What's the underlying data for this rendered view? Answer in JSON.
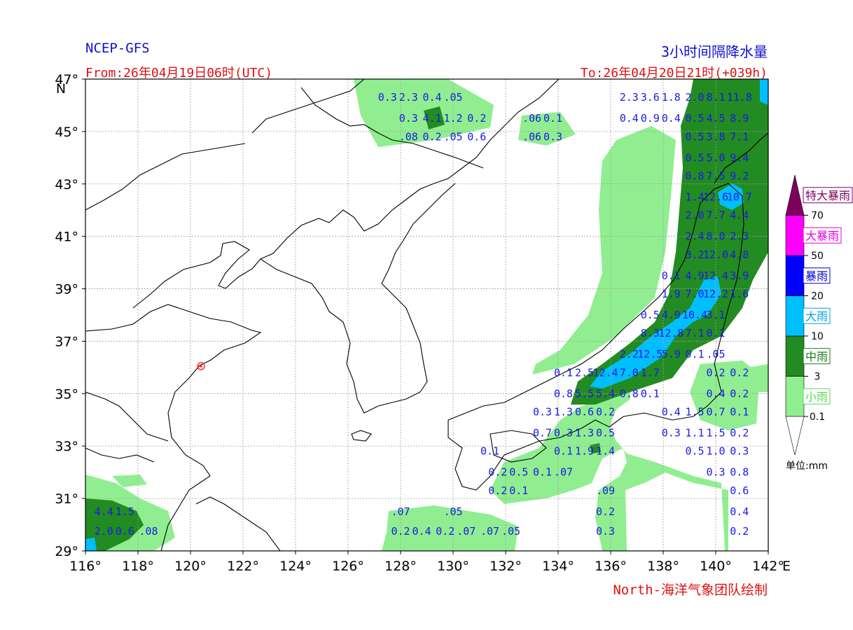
{
  "header": {
    "model": "NCEP-GFS",
    "product": "3小时间隔降水量",
    "from": "From:26年04月19日06时(UTC)",
    "to": "To:26年04月20日21时(+039h)",
    "credit": "North-海洋气象团队绘制"
  },
  "map": {
    "lon_range": [
      116,
      142
    ],
    "lat_range": [
      29,
      47
    ],
    "lon_ticks": [
      "116°",
      "118°",
      "120°",
      "122°",
      "124°",
      "126°",
      "128°",
      "130°",
      "132°",
      "134°",
      "136°",
      "138°",
      "140°",
      "142°"
    ],
    "lon_suffix": "E",
    "lat_ticks": [
      "47°",
      "45°",
      "43°",
      "41°",
      "39°",
      "37°",
      "35°",
      "33°",
      "31°",
      "29°"
    ],
    "lat_suffix": "N",
    "marker": {
      "lon": 120.4,
      "lat": 36.05,
      "color": "#ff3030"
    }
  },
  "legend": {
    "unit": "单位:mm",
    "bins": [
      {
        "name": "小雨",
        "color": "#90ee90",
        "text_color": "#5cd65c"
      },
      {
        "name": "中雨",
        "color": "#228b22",
        "text_color": "#1a7a1a"
      },
      {
        "name": "大雨",
        "color": "#00bfff",
        "text_color": "#00a0e0"
      },
      {
        "name": "暴雨",
        "color": "#0000ff",
        "text_color": "#0000d0"
      },
      {
        "name": "大暴雨",
        "color": "#ff00ff",
        "text_color": "#e000e0"
      },
      {
        "name": "特大暴雨",
        "color": "#800060",
        "text_color": "#800060"
      }
    ],
    "thresholds": [
      "0.1",
      "3",
      "10",
      "20",
      "50",
      "70"
    ]
  },
  "chart_data": {
    "type": "heatmap",
    "title": "3小时间隔降水量",
    "unit": "mm",
    "values": [
      {
        "lon": 127.5,
        "lat": 46.3,
        "v": "0.3"
      },
      {
        "lon": 128.3,
        "lat": 46.3,
        "v": "2.3"
      },
      {
        "lon": 129.2,
        "lat": 46.3,
        "v": "0.4"
      },
      {
        "lon": 130.0,
        "lat": 46.3,
        "v": ".05"
      },
      {
        "lon": 128.3,
        "lat": 45.5,
        "v": "0.3"
      },
      {
        "lon": 129.2,
        "lat": 45.5,
        "v": "4.1"
      },
      {
        "lon": 130.0,
        "lat": 45.5,
        "v": "1.2"
      },
      {
        "lon": 130.9,
        "lat": 45.5,
        "v": "0.2"
      },
      {
        "lon": 128.3,
        "lat": 44.8,
        "v": ".08"
      },
      {
        "lon": 129.2,
        "lat": 44.8,
        "v": "0.2"
      },
      {
        "lon": 130.0,
        "lat": 44.8,
        "v": ".05"
      },
      {
        "lon": 130.9,
        "lat": 44.8,
        "v": "0.6"
      },
      {
        "lon": 133.0,
        "lat": 45.5,
        "v": ".06"
      },
      {
        "lon": 133.8,
        "lat": 45.5,
        "v": "0.1"
      },
      {
        "lon": 133.0,
        "lat": 44.8,
        "v": ".06"
      },
      {
        "lon": 133.8,
        "lat": 44.8,
        "v": "0.3"
      },
      {
        "lon": 136.7,
        "lat": 46.3,
        "v": "2.3"
      },
      {
        "lon": 137.5,
        "lat": 46.3,
        "v": "3.6"
      },
      {
        "lon": 138.3,
        "lat": 46.3,
        "v": "1.8"
      },
      {
        "lon": 139.2,
        "lat": 46.3,
        "v": "2.0"
      },
      {
        "lon": 140.0,
        "lat": 46.3,
        "v": "8.1"
      },
      {
        "lon": 140.9,
        "lat": 46.3,
        "v": "11.8"
      },
      {
        "lon": 136.7,
        "lat": 45.5,
        "v": "0.4"
      },
      {
        "lon": 137.5,
        "lat": 45.5,
        "v": "0.9"
      },
      {
        "lon": 138.3,
        "lat": 45.5,
        "v": "0.4"
      },
      {
        "lon": 139.2,
        "lat": 45.5,
        "v": "0.5"
      },
      {
        "lon": 140.0,
        "lat": 45.5,
        "v": "4.5"
      },
      {
        "lon": 140.9,
        "lat": 45.5,
        "v": "8.9"
      },
      {
        "lon": 139.2,
        "lat": 44.8,
        "v": "0.5"
      },
      {
        "lon": 140.0,
        "lat": 44.8,
        "v": "3.8"
      },
      {
        "lon": 140.9,
        "lat": 44.8,
        "v": "7.1"
      },
      {
        "lon": 139.2,
        "lat": 44.0,
        "v": "0.5"
      },
      {
        "lon": 140.0,
        "lat": 44.0,
        "v": "5.0"
      },
      {
        "lon": 140.9,
        "lat": 44.0,
        "v": "9.4"
      },
      {
        "lon": 139.2,
        "lat": 43.3,
        "v": "0.8"
      },
      {
        "lon": 140.0,
        "lat": 43.3,
        "v": "7.5"
      },
      {
        "lon": 140.9,
        "lat": 43.3,
        "v": "9.2"
      },
      {
        "lon": 139.2,
        "lat": 42.5,
        "v": "1.4"
      },
      {
        "lon": 140.0,
        "lat": 42.5,
        "v": "12.6"
      },
      {
        "lon": 140.9,
        "lat": 42.5,
        "v": "10.7"
      },
      {
        "lon": 139.2,
        "lat": 41.8,
        "v": "2.0"
      },
      {
        "lon": 140.0,
        "lat": 41.8,
        "v": "7.7"
      },
      {
        "lon": 140.9,
        "lat": 41.8,
        "v": "4.4"
      },
      {
        "lon": 139.2,
        "lat": 41.0,
        "v": "2.4"
      },
      {
        "lon": 140.0,
        "lat": 41.0,
        "v": "8.0"
      },
      {
        "lon": 140.9,
        "lat": 41.0,
        "v": "2.3"
      },
      {
        "lon": 139.2,
        "lat": 40.3,
        "v": "3.2"
      },
      {
        "lon": 140.0,
        "lat": 40.3,
        "v": "12.0"
      },
      {
        "lon": 140.9,
        "lat": 40.3,
        "v": "4.8"
      },
      {
        "lon": 138.3,
        "lat": 39.5,
        "v": "0.1"
      },
      {
        "lon": 139.2,
        "lat": 39.5,
        "v": "4.9"
      },
      {
        "lon": 140.0,
        "lat": 39.5,
        "v": "12.4"
      },
      {
        "lon": 140.9,
        "lat": 39.5,
        "v": "3.9"
      },
      {
        "lon": 138.3,
        "lat": 38.8,
        "v": "1.9"
      },
      {
        "lon": 139.2,
        "lat": 38.8,
        "v": "7.0"
      },
      {
        "lon": 140.0,
        "lat": 38.8,
        "v": "12.2"
      },
      {
        "lon": 140.9,
        "lat": 38.8,
        "v": "1.6"
      },
      {
        "lon": 137.5,
        "lat": 38.0,
        "v": "0.5"
      },
      {
        "lon": 138.3,
        "lat": 38.0,
        "v": "4.9"
      },
      {
        "lon": 139.2,
        "lat": 38.0,
        "v": "10.4"
      },
      {
        "lon": 140.0,
        "lat": 38.0,
        "v": "3.1"
      },
      {
        "lon": 137.5,
        "lat": 37.3,
        "v": "8.3"
      },
      {
        "lon": 138.3,
        "lat": 37.3,
        "v": "12.8"
      },
      {
        "lon": 139.2,
        "lat": 37.3,
        "v": "7.1"
      },
      {
        "lon": 140.0,
        "lat": 37.3,
        "v": "0.1"
      },
      {
        "lon": 136.7,
        "lat": 36.5,
        "v": "2.2"
      },
      {
        "lon": 137.5,
        "lat": 36.5,
        "v": "12.5"
      },
      {
        "lon": 138.3,
        "lat": 36.5,
        "v": "5.9"
      },
      {
        "lon": 139.2,
        "lat": 36.5,
        "v": "0.1"
      },
      {
        "lon": 140.0,
        "lat": 36.5,
        "v": ".05"
      },
      {
        "lon": 134.2,
        "lat": 35.8,
        "v": "0.1"
      },
      {
        "lon": 135.0,
        "lat": 35.8,
        "v": "2.5"
      },
      {
        "lon": 135.8,
        "lat": 35.8,
        "v": "12.4"
      },
      {
        "lon": 136.7,
        "lat": 35.8,
        "v": "7.0"
      },
      {
        "lon": 137.5,
        "lat": 35.8,
        "v": "1.7"
      },
      {
        "lon": 140.0,
        "lat": 35.8,
        "v": "0.2"
      },
      {
        "lon": 140.9,
        "lat": 35.8,
        "v": "0.2"
      },
      {
        "lon": 134.2,
        "lat": 35.0,
        "v": "0.8"
      },
      {
        "lon": 135.0,
        "lat": 35.0,
        "v": "5.5"
      },
      {
        "lon": 135.8,
        "lat": 35.0,
        "v": "5.4"
      },
      {
        "lon": 136.7,
        "lat": 35.0,
        "v": "0.8"
      },
      {
        "lon": 137.5,
        "lat": 35.0,
        "v": "0.1"
      },
      {
        "lon": 140.0,
        "lat": 35.0,
        "v": "0.4"
      },
      {
        "lon": 140.9,
        "lat": 35.0,
        "v": "0.2"
      },
      {
        "lon": 133.4,
        "lat": 34.3,
        "v": "0.3"
      },
      {
        "lon": 134.2,
        "lat": 34.3,
        "v": "1.3"
      },
      {
        "lon": 135.0,
        "lat": 34.3,
        "v": "0.6"
      },
      {
        "lon": 135.8,
        "lat": 34.3,
        "v": "0.2"
      },
      {
        "lon": 138.3,
        "lat": 34.3,
        "v": "0.4"
      },
      {
        "lon": 139.2,
        "lat": 34.3,
        "v": "1.5"
      },
      {
        "lon": 140.0,
        "lat": 34.3,
        "v": "0.7"
      },
      {
        "lon": 140.9,
        "lat": 34.3,
        "v": "0.1"
      },
      {
        "lon": 133.4,
        "lat": 33.5,
        "v": "0.7"
      },
      {
        "lon": 134.2,
        "lat": 33.5,
        "v": "0.3"
      },
      {
        "lon": 135.0,
        "lat": 33.5,
        "v": "1.3"
      },
      {
        "lon": 135.8,
        "lat": 33.5,
        "v": "0.5"
      },
      {
        "lon": 138.3,
        "lat": 33.5,
        "v": "0.3"
      },
      {
        "lon": 139.2,
        "lat": 33.5,
        "v": "1.1"
      },
      {
        "lon": 140.0,
        "lat": 33.5,
        "v": "1.5"
      },
      {
        "lon": 140.9,
        "lat": 33.5,
        "v": "0.2"
      },
      {
        "lon": 131.4,
        "lat": 32.8,
        "v": "0.1"
      },
      {
        "lon": 134.2,
        "lat": 32.8,
        "v": "0.1"
      },
      {
        "lon": 135.0,
        "lat": 32.8,
        "v": "1.9"
      },
      {
        "lon": 135.8,
        "lat": 32.8,
        "v": "1.4"
      },
      {
        "lon": 139.2,
        "lat": 32.8,
        "v": "0.5"
      },
      {
        "lon": 140.0,
        "lat": 32.8,
        "v": "1.0"
      },
      {
        "lon": 140.9,
        "lat": 32.8,
        "v": "0.3"
      },
      {
        "lon": 131.7,
        "lat": 32.0,
        "v": "0.2"
      },
      {
        "lon": 132.5,
        "lat": 32.0,
        "v": "0.5"
      },
      {
        "lon": 133.4,
        "lat": 32.0,
        "v": "0.1"
      },
      {
        "lon": 134.2,
        "lat": 32.0,
        "v": ".07"
      },
      {
        "lon": 140.0,
        "lat": 32.0,
        "v": "0.3"
      },
      {
        "lon": 140.9,
        "lat": 32.0,
        "v": "0.8"
      },
      {
        "lon": 131.7,
        "lat": 31.3,
        "v": "0.2"
      },
      {
        "lon": 132.5,
        "lat": 31.3,
        "v": "0.1"
      },
      {
        "lon": 135.8,
        "lat": 31.3,
        "v": ".09"
      },
      {
        "lon": 140.9,
        "lat": 31.3,
        "v": "0.6"
      },
      {
        "lon": 128.0,
        "lat": 30.5,
        "v": ".07"
      },
      {
        "lon": 130.0,
        "lat": 30.5,
        "v": ".05"
      },
      {
        "lon": 135.8,
        "lat": 30.5,
        "v": "0.2"
      },
      {
        "lon": 140.9,
        "lat": 30.5,
        "v": "0.4"
      },
      {
        "lon": 128.0,
        "lat": 29.75,
        "v": "0.2"
      },
      {
        "lon": 128.8,
        "lat": 29.75,
        "v": "0.4"
      },
      {
        "lon": 129.7,
        "lat": 29.75,
        "v": "0.2"
      },
      {
        "lon": 130.5,
        "lat": 29.75,
        "v": ".07"
      },
      {
        "lon": 131.4,
        "lat": 29.75,
        "v": ".07"
      },
      {
        "lon": 132.2,
        "lat": 29.75,
        "v": ".05"
      },
      {
        "lon": 135.8,
        "lat": 29.75,
        "v": "0.3"
      },
      {
        "lon": 140.9,
        "lat": 29.75,
        "v": "0.2"
      },
      {
        "lon": 116.7,
        "lat": 30.5,
        "v": "4.4"
      },
      {
        "lon": 117.5,
        "lat": 30.5,
        "v": "1.5"
      },
      {
        "lon": 116.7,
        "lat": 29.75,
        "v": "2.0"
      },
      {
        "lon": 117.5,
        "lat": 29.75,
        "v": "0.6"
      },
      {
        "lon": 118.4,
        "lat": 29.75,
        "v": ".08"
      }
    ]
  }
}
